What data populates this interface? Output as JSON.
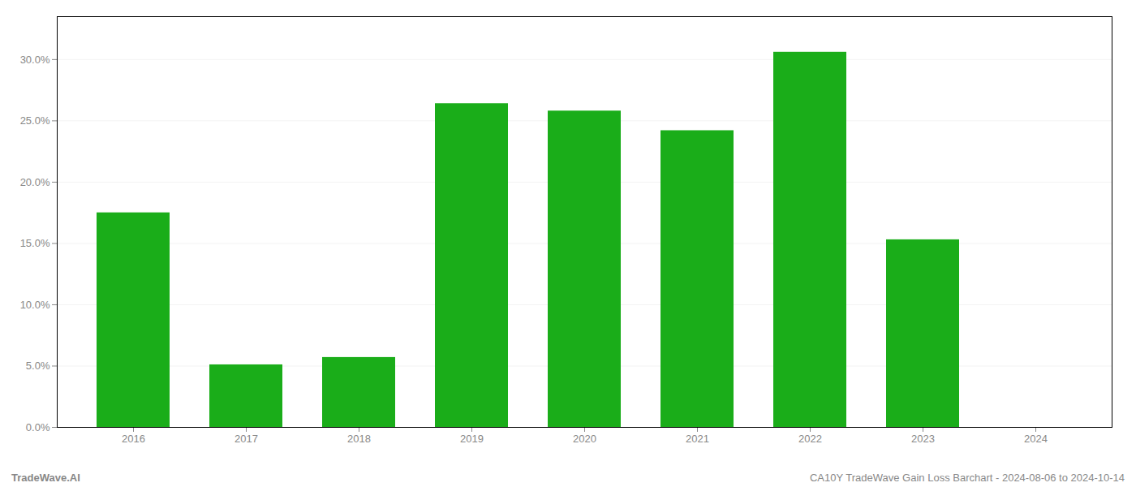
{
  "chart_data": {
    "type": "bar",
    "categories": [
      "2016",
      "2017",
      "2018",
      "2019",
      "2020",
      "2021",
      "2022",
      "2023",
      "2024"
    ],
    "values": [
      0.175,
      0.051,
      0.057,
      0.264,
      0.258,
      0.242,
      0.306,
      0.153,
      0.0
    ],
    "color": "#1aad19",
    "ylim": [
      0,
      0.335
    ],
    "yticks": [
      {
        "value": 0.0,
        "label": "0.0%"
      },
      {
        "value": 0.05,
        "label": "5.0%"
      },
      {
        "value": 0.1,
        "label": "10.0%"
      },
      {
        "value": 0.15,
        "label": "15.0%"
      },
      {
        "value": 0.2,
        "label": "20.0%"
      },
      {
        "value": 0.25,
        "label": "25.0%"
      },
      {
        "value": 0.3,
        "label": "30.0%"
      }
    ],
    "grid": true,
    "annotations": [
      "TradeWave.AI",
      "CA10Y TradeWave Gain Loss Barchart - 2024-08-06 to 2024-10-14"
    ]
  }
}
